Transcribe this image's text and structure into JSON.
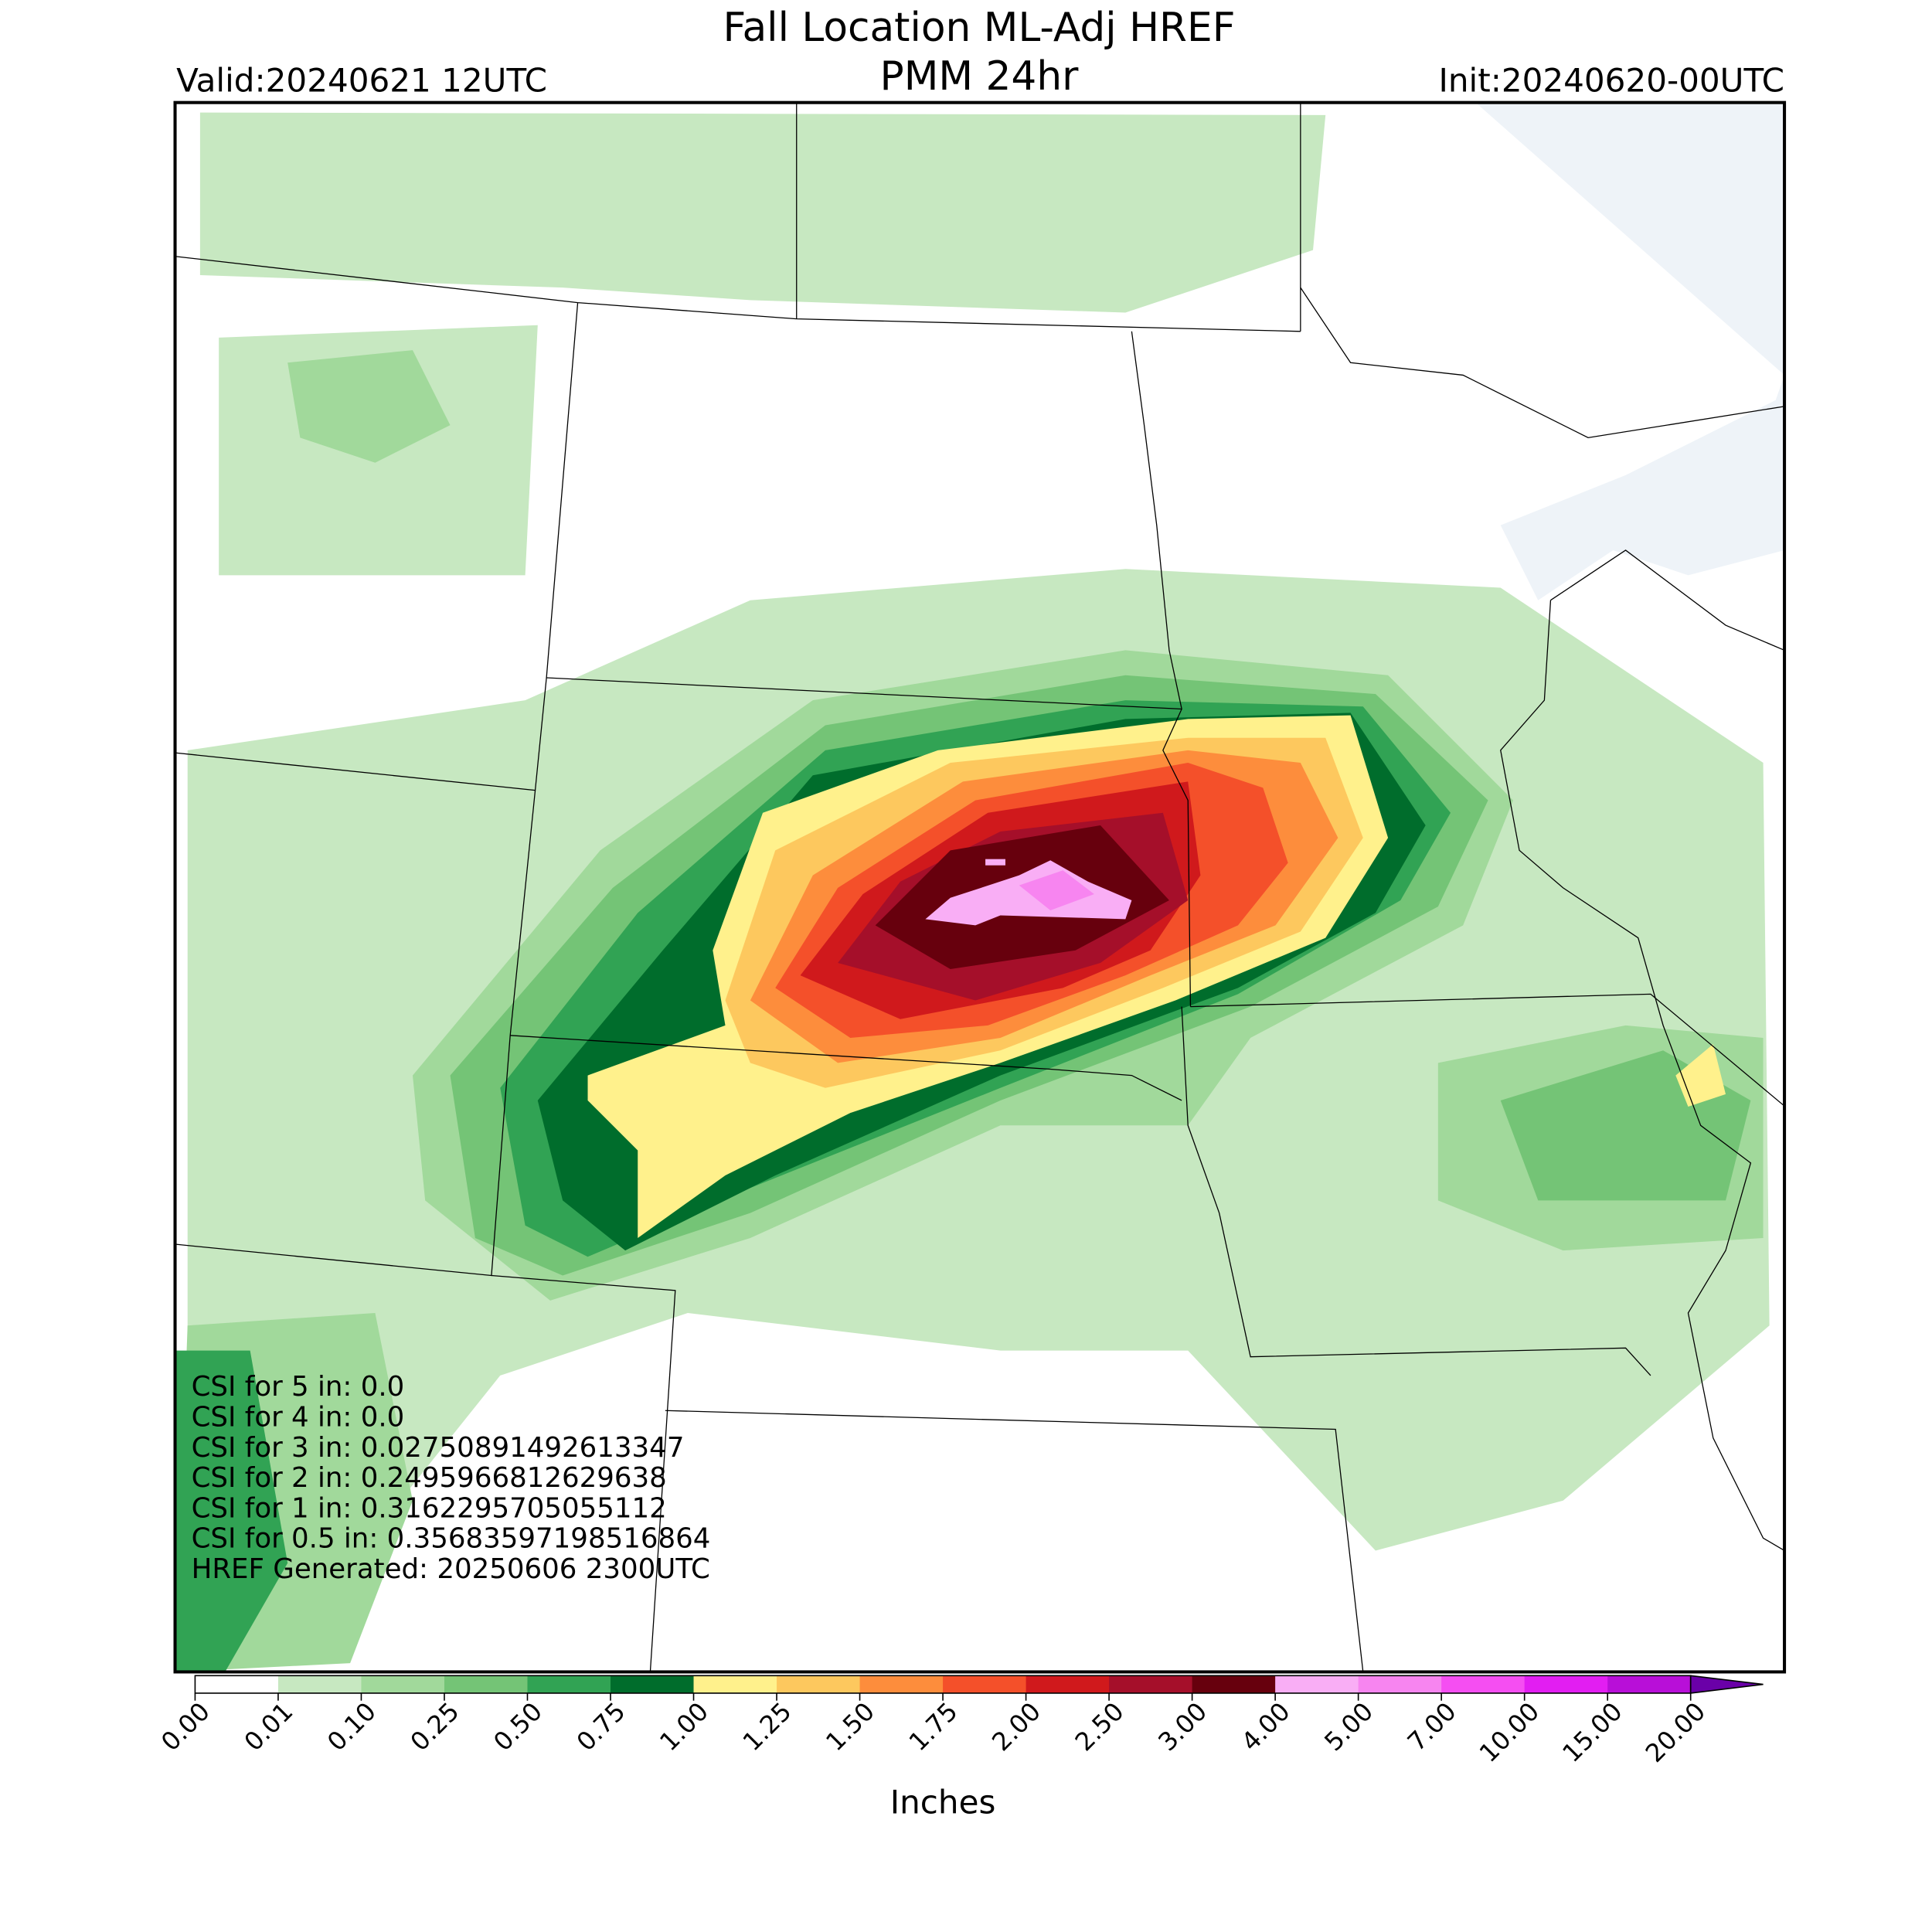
{
  "header": {
    "title": "Fall Location ML-Adj HREF",
    "subtitle": "PMM 24hr",
    "valid": "Valid:20240621 12UTC",
    "init": "Init:20240620-00UTC"
  },
  "csi_text": [
    "CSI for 5 in: 0.0",
    "CSI for 4 in: 0.0",
    "CSI for 3 in: 0.02750891492613347",
    "CSI for 2 in: 0.2495966812629638",
    "CSI for 1 in: 0.3162295705055112",
    "CSI for 0.5 in: 0.35683597198516864",
    "HREF Generated: 20250606 2300UTC"
  ],
  "colorbar": {
    "label": "Inches",
    "ticks": [
      {
        "value": 0,
        "label": "0.00"
      },
      {
        "value": 0.01,
        "label": "0.01"
      },
      {
        "value": 0.1,
        "label": "0.10"
      },
      {
        "value": 0.25,
        "label": "0.25"
      },
      {
        "value": 0.5,
        "label": "0.50"
      },
      {
        "value": 0.75,
        "label": "0.75"
      },
      {
        "value": 1,
        "label": "1.00"
      },
      {
        "value": 1.25,
        "label": "1.25"
      },
      {
        "value": 1.5,
        "label": "1.50"
      },
      {
        "value": 1.75,
        "label": "1.75"
      },
      {
        "value": 2,
        "label": "2.00"
      },
      {
        "value": 2.5,
        "label": "2.50"
      },
      {
        "value": 3,
        "label": "3.00"
      },
      {
        "value": 4,
        "label": "4.00"
      },
      {
        "value": 5,
        "label": "5.00"
      },
      {
        "value": 7,
        "label": "7.00"
      },
      {
        "value": 10,
        "label": "10.00"
      },
      {
        "value": 15,
        "label": "15.00"
      },
      {
        "value": 20,
        "label": "20.00"
      }
    ],
    "colors": [
      "#ffffff",
      "#c7e8c1",
      "#a1d99b",
      "#74c476",
      "#31a354",
      "#006d2c",
      "#fff18c",
      "#fdc85e",
      "#fd8d3c",
      "#f4502a",
      "#d0191c",
      "#a50f2a",
      "#67000d",
      "#f9aef5",
      "#f785f0",
      "#f54ef2",
      "#e21ef2",
      "#b80fd8"
    ],
    "over_color": "#6a00a8"
  }
}
